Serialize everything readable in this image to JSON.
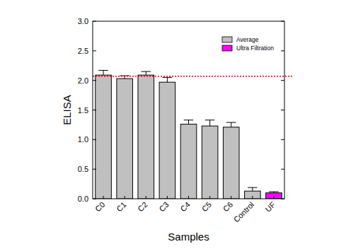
{
  "chart_data": {
    "type": "bar",
    "x_label": "Samples",
    "y_label": "ELISA",
    "categories": [
      "C0",
      "C1",
      "C2",
      "C3",
      "C4",
      "C5",
      "C6",
      "Control",
      "UF"
    ],
    "series": [
      {
        "name": "Average",
        "color": "#c0c0c0",
        "values": [
          2.09,
          2.03,
          2.09,
          1.97,
          1.26,
          1.23,
          1.21,
          0.13,
          null
        ],
        "errors": [
          0.08,
          0.05,
          0.06,
          0.08,
          0.07,
          0.1,
          0.08,
          0.06,
          null
        ]
      },
      {
        "name": "Ultra Filtration",
        "color": "#ff00ff",
        "values": [
          null,
          null,
          null,
          null,
          null,
          null,
          null,
          null,
          0.1
        ],
        "errors": [
          null,
          null,
          null,
          null,
          null,
          null,
          null,
          null,
          0.02
        ]
      }
    ],
    "threshold": 2.07,
    "ylim": [
      0,
      3
    ],
    "yticks": [
      {
        "value": 0,
        "label": "0.0"
      },
      {
        "value": 0.5,
        "label": "0.5"
      },
      {
        "value": 1,
        "label": "1.0"
      },
      {
        "value": 1.5,
        "label": "1.5"
      },
      {
        "value": 2,
        "label": "2.0"
      },
      {
        "value": 2.5,
        "label": "2.5"
      },
      {
        "value": 3,
        "label": "3.0"
      }
    ],
    "legend": "top-right",
    "grid": false
  }
}
